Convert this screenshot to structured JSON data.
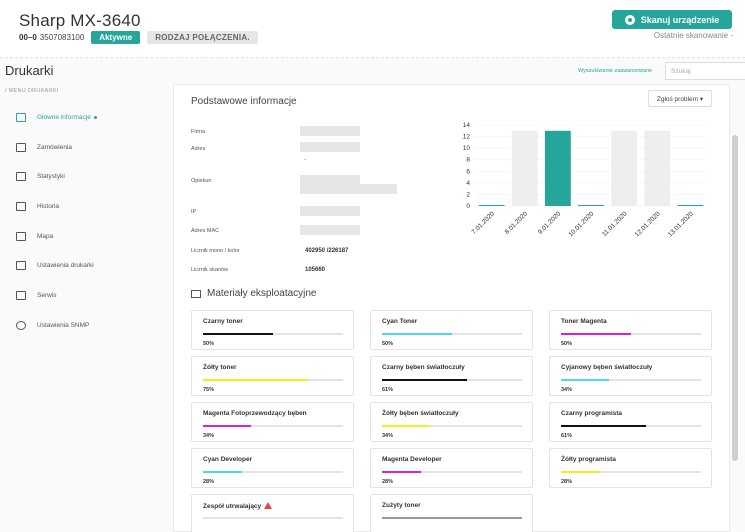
{
  "header": {
    "title": "Sharp MX-3640",
    "code": "00–0",
    "serial": "3507083100",
    "status": "Aktywne",
    "connection": "RODZAJ POŁĄCZENIA.",
    "scan_button": "Skanuj urządzenie",
    "last_scan": "Ostatnie skanowanie -"
  },
  "sidebar": {
    "heading": "Drukarki",
    "menu_label": "/ MENU DRUKARKI",
    "items": [
      {
        "label": "Główne informacje",
        "icon": "printer-icon"
      },
      {
        "label": "Zamówienia",
        "icon": "cart-icon"
      },
      {
        "label": "Statystyki",
        "icon": "stats-icon"
      },
      {
        "label": "Historia",
        "icon": "history-icon"
      },
      {
        "label": "Mapa",
        "icon": "map-icon"
      },
      {
        "label": "Ustawienia drukarki",
        "icon": "printer-settings-icon"
      },
      {
        "label": "Serwis",
        "icon": "service-icon"
      },
      {
        "label": "Ustawienia SNMP",
        "icon": "gear-icon"
      }
    ]
  },
  "search": {
    "advanced": "Wyszukiwanie zaawansowane",
    "placeholder": "Szukaj"
  },
  "basic_info": {
    "title": "Podstawowe informacje",
    "report_button": "Zgłoś problem ▾",
    "labels": {
      "company": "Firma",
      "address": "Adres",
      "guardian": "Opiekun",
      "ip": "IP",
      "mac": "Adres MAC",
      "counter_mono_color": "Licznik mono / kolor",
      "scan_counter": "Licznik skanów"
    },
    "address_dash": "-",
    "counter_mono_color_value": "402950 /226187",
    "scan_counter_value": "105660"
  },
  "chart_data": {
    "type": "bar",
    "categories": [
      "7.01.2020",
      "8.01.2020",
      "9.01.2020",
      "10.01.2020",
      "11.01.2020",
      "12.01.2020",
      "13.01.2020"
    ],
    "values": [
      0,
      13,
      13,
      0,
      13,
      13,
      0
    ],
    "highlight_index": 2,
    "ylim": [
      0,
      14
    ],
    "yticks": [
      0,
      2,
      4,
      6,
      8,
      10,
      12,
      14
    ],
    "colors": {
      "highlight": "#26a69a",
      "default": "#eeeeee",
      "zero": "#26a69a"
    }
  },
  "consumables": {
    "title": "Materiały eksploatacyjne",
    "items": [
      {
        "name": "Czarny toner",
        "percent": "50%",
        "level": 0.5,
        "color": "#111111"
      },
      {
        "name": "Cyan Toner",
        "percent": "50%",
        "level": 0.5,
        "color": "#4dd8e8"
      },
      {
        "name": "Toner Magenta",
        "percent": "50%",
        "level": 0.5,
        "color": "#e020d0"
      },
      {
        "name": "Żółty toner",
        "percent": "75%",
        "level": 0.75,
        "color": "#f0f020"
      },
      {
        "name": "Czarny bęben światłoczuły",
        "percent": "61%",
        "level": 0.61,
        "color": "#111111"
      },
      {
        "name": "Cyjanowy bęben światłoczuły",
        "percent": "34%",
        "level": 0.34,
        "color": "#4dd8e8"
      },
      {
        "name": "Magenta Fotoprzewodzący bęben",
        "percent": "34%",
        "level": 0.34,
        "color": "#e020d0"
      },
      {
        "name": "Żółty bęben światłoczuły",
        "percent": "34%",
        "level": 0.34,
        "color": "#f0f020"
      },
      {
        "name": "Czarny programista",
        "percent": "61%",
        "level": 0.61,
        "color": "#111111"
      },
      {
        "name": "Cyan Developer",
        "percent": "28%",
        "level": 0.28,
        "color": "#4dd8e8"
      },
      {
        "name": "Magenta Developer",
        "percent": "28%",
        "level": 0.28,
        "color": "#e020d0"
      },
      {
        "name": "Żółty programista",
        "percent": "28%",
        "level": 0.28,
        "color": "#f0f020"
      },
      {
        "name": "Zespół utrwalający",
        "percent": "",
        "level": 0,
        "color": "#999999",
        "warning": true
      },
      {
        "name": "Zużyty toner",
        "percent": "",
        "level": 1,
        "color": "#999999"
      }
    ]
  }
}
